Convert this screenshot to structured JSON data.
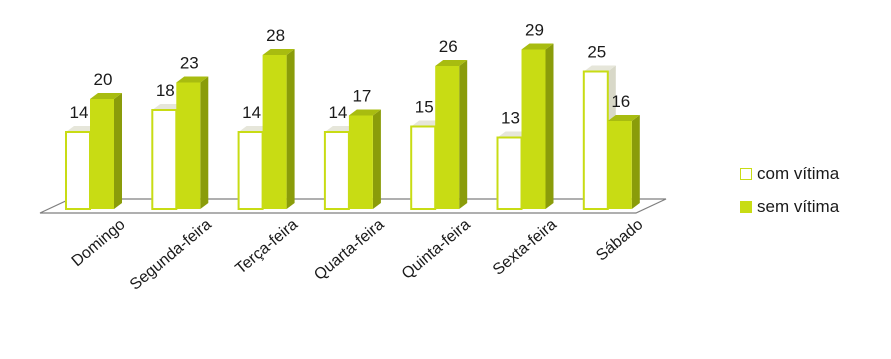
{
  "chart_data": {
    "type": "bar",
    "title": "",
    "xlabel": "",
    "ylabel": "",
    "categories": [
      "Domingo",
      "Segunda-feira",
      "Terça-feira",
      "Quarta-feira",
      "Quinta-feira",
      "Sexta-feira",
      "Sábado"
    ],
    "series": [
      {
        "name": "com vítima",
        "values": [
          14,
          18,
          14,
          14,
          15,
          13,
          25
        ]
      },
      {
        "name": "sem vítima",
        "values": [
          20,
          23,
          28,
          17,
          26,
          29,
          16
        ]
      }
    ],
    "data_labels": true,
    "grid": false,
    "legend_position": "right",
    "colors": {
      "com_vitima_fill": "#ffffff",
      "com_vitima_border": "#c8dc14",
      "sem_vitima_front": "#c8dc14",
      "sem_vitima_side": "#8a9c0a",
      "sem_vitima_top": "#a8bc10",
      "floor_border": "#7f7f7f"
    }
  },
  "legend": {
    "items": [
      {
        "label": "com vítima"
      },
      {
        "label": "sem vítima"
      }
    ]
  }
}
